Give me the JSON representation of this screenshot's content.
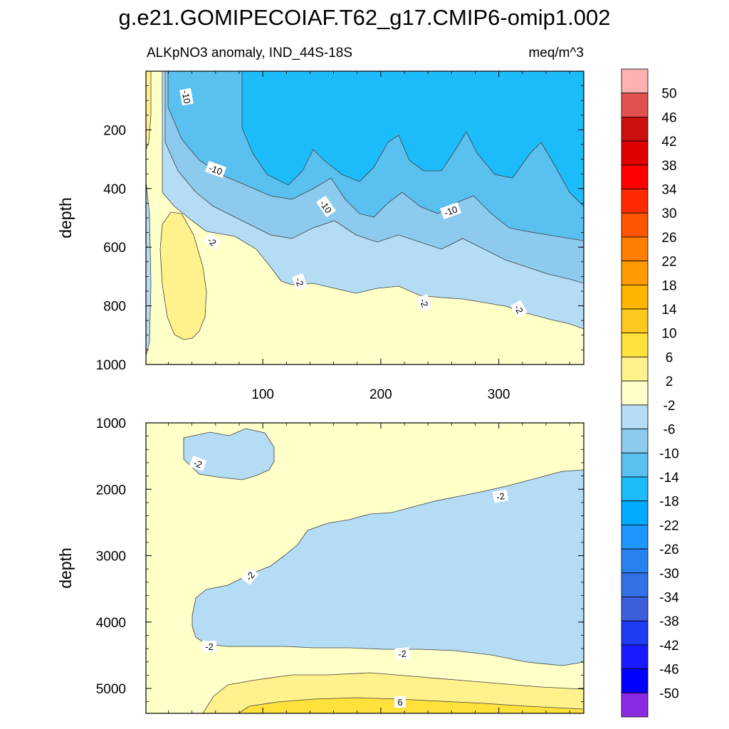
{
  "chart_data": [
    {
      "type": "contour",
      "title": "g.e21.GOMIPECOIAF.T62_g17.CMIP6-omip1.002",
      "subtitle_left": "ALKpNO3 anomaly, IND_44S-18S",
      "subtitle_right": "meq/m^3",
      "panel": "upper",
      "ylabel": "depth",
      "ylim": [
        1000,
        0
      ],
      "xlim": [
        1,
        372
      ],
      "yticks": [
        "200",
        "400",
        "600",
        "800",
        "1000"
      ],
      "xticks": [
        "100",
        "200",
        "300"
      ],
      "contour_labels": [
        "-10",
        "-10",
        "-10",
        "-10",
        "-2",
        "-2",
        "-2",
        "-2"
      ]
    },
    {
      "type": "contour",
      "panel": "lower",
      "ylabel": "depth",
      "ylim": [
        5375,
        1000
      ],
      "xlim": [
        1,
        372
      ],
      "yticks": [
        "1000",
        "2000",
        "3000",
        "4000",
        "5000"
      ],
      "contour_labels": [
        "-2",
        "-2",
        "-2",
        "-2",
        "-2",
        "6"
      ]
    },
    {
      "type": "colorbar",
      "labels": [
        "50",
        "46",
        "42",
        "38",
        "34",
        "30",
        "26",
        "22",
        "18",
        "14",
        "10",
        "6",
        "2",
        "-2",
        "-6",
        "-10",
        "-14",
        "-18",
        "-22",
        "-26",
        "-30",
        "-34",
        "-38",
        "-42",
        "-46",
        "-50"
      ],
      "colors": [
        "#ffb1b1",
        "#e35050",
        "#cb1010",
        "#e00000",
        "#ff0000",
        "#ff2a00",
        "#ff5400",
        "#ff7d00",
        "#ff9a00",
        "#ffb400",
        "#ffc81e",
        "#ffe13c",
        "#fff28c",
        "#ffffc8",
        "#b4dcf5",
        "#8ccbee",
        "#5ac0f0",
        "#1cbcfa",
        "#00aaff",
        "#1e96ff",
        "#2782f0",
        "#3470e6",
        "#3c5fdc",
        "#1e3cf0",
        "#1a1aff",
        "#0000ff",
        "#8a2be2"
      ]
    }
  ]
}
